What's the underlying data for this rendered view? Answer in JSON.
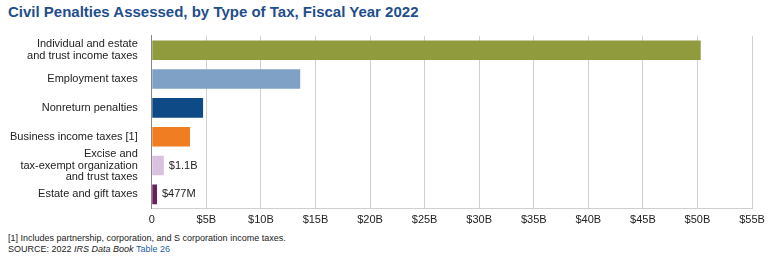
{
  "chart_data": {
    "type": "bar",
    "orientation": "horizontal",
    "title": "Civil Penalties Assessed, by Type of Tax, Fiscal Year 2022",
    "categories": [
      [
        "Individual and estate",
        "and trust income taxes"
      ],
      [
        "Employment taxes"
      ],
      [
        "Nonreturn penalties"
      ],
      [
        "Business income taxes [1]"
      ],
      [
        "Excise and",
        "tax-exempt organization",
        "and trust taxes"
      ],
      [
        "Estate and gift taxes"
      ]
    ],
    "values": [
      50.3,
      13.6,
      4.7,
      3.5,
      1.1,
      0.477
    ],
    "colors": [
      "#8f9b3c",
      "#7fa1c5",
      "#0d4a86",
      "#f07d22",
      "#d9c1e0",
      "#6b1f5e"
    ],
    "data_labels": true,
    "value_labels": [
      null,
      null,
      null,
      null,
      "$1.1B",
      "$477M"
    ],
    "xlim": [
      0,
      55
    ],
    "xticks": [
      0,
      {
        "value": 5,
        "label": "$5B"
      },
      {
        "value": 10,
        "label": "$10B"
      },
      {
        "value": 15,
        "label": "$15B"
      },
      {
        "value": 20,
        "label": "$20B"
      },
      {
        "value": 25,
        "label": "$25B"
      },
      {
        "value": 30,
        "label": "$30B"
      },
      {
        "value": 35,
        "label": "$35B"
      },
      {
        "value": 40,
        "label": "$40B"
      },
      {
        "value": 45,
        "label": "$45B"
      },
      {
        "value": 50,
        "label": "$50B"
      },
      {
        "value": 55,
        "label": "$55B"
      }
    ],
    "grid": true,
    "footnote": "[1] Includes partnership, corporation, and S corporation income taxes.",
    "source": [
      "SOURCE: 2022 ",
      "IRS Data Book",
      " Table 26"
    ]
  }
}
